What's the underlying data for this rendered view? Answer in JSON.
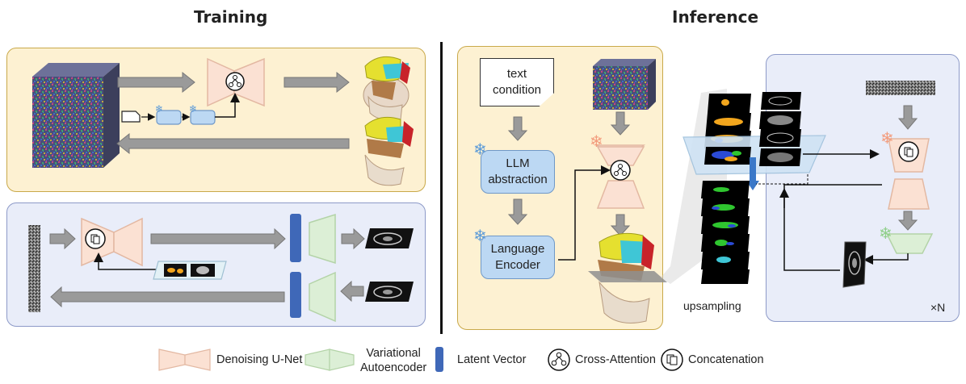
{
  "headings": {
    "training": "Training",
    "inference": "Inference"
  },
  "inference": {
    "text_condition": "text\ncondition",
    "llm_abstraction": "LLM\nabstraction",
    "language_encoder": "Language\nEncoder",
    "upsampling": "upsampling",
    "repeat": "×N"
  },
  "legend": {
    "unet": "Denoising U-Net",
    "vae": "Variational\nAutoencoder",
    "latent": "Latent Vector",
    "cross_attention": "Cross-Attention",
    "concatenation": "Concatenation"
  },
  "colors": {
    "unet_fill": "#fbe1d3",
    "unet_stroke": "#e3b8a2",
    "vae_fill": "#dcefd6",
    "vae_stroke": "#b3d3a7",
    "latent": "#3f68b8",
    "yellow_panel": "#fdf1d2",
    "blue_panel": "#e9edf9",
    "frozen": "#5b9ad8",
    "frozen_warm": "#f39c7d",
    "frozen_green": "#8fcf8a"
  }
}
